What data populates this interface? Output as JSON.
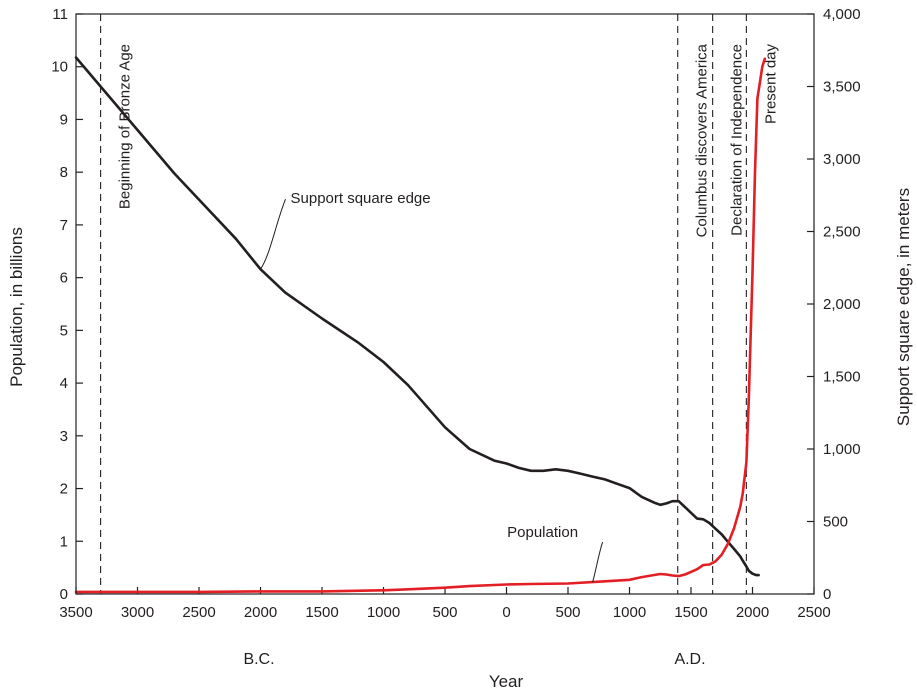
{
  "chart_data": {
    "type": "line",
    "xlabel": "Year",
    "x_era_labels": [
      "B.C.",
      "A.D."
    ],
    "x_ticks": [
      -3500,
      -3000,
      -2500,
      -2000,
      -1500,
      -1000,
      -500,
      0,
      500,
      1000,
      1500,
      2000,
      2500
    ],
    "x_tick_labels": [
      "3500",
      "3000",
      "2500",
      "2000",
      "1500",
      "1000",
      "500",
      "0",
      "500",
      "1000",
      "1500",
      "2000",
      "2500"
    ],
    "xlim": [
      -3500,
      2500
    ],
    "ylabel_left": "Population, in billions",
    "ylim_left": [
      0,
      11
    ],
    "y_ticks_left": [
      "0",
      "1",
      "2",
      "3",
      "4",
      "5",
      "6",
      "7",
      "8",
      "9",
      "10",
      "11"
    ],
    "ylabel_right": "Support square edge, in meters",
    "ylim_right": [
      0,
      4000
    ],
    "y_ticks_right": [
      "0",
      "500",
      "1,000",
      "1,500",
      "2,000",
      "2,500",
      "3,000",
      "3,500",
      "4,000"
    ],
    "grid": false,
    "series": [
      {
        "name": "Support square edge",
        "axis": "right",
        "color": "#231f20",
        "x": [
          -3500,
          -3300,
          -3000,
          -2700,
          -2500,
          -2200,
          -2000,
          -1800,
          -1500,
          -1200,
          -1000,
          -800,
          -500,
          -300,
          -100,
          0,
          100,
          200,
          300,
          400,
          500,
          600,
          700,
          800,
          900,
          1000,
          1050,
          1100,
          1200,
          1250,
          1300,
          1350,
          1400,
          1450,
          1500,
          1550,
          1600,
          1650,
          1700,
          1750,
          1800,
          1850,
          1900,
          1920,
          1950,
          1970,
          2000,
          2030,
          2050
        ],
        "y": [
          3700,
          3500,
          3200,
          2900,
          2720,
          2450,
          2240,
          2080,
          1900,
          1730,
          1600,
          1440,
          1150,
          1000,
          920,
          900,
          870,
          850,
          850,
          860,
          850,
          830,
          810,
          790,
          760,
          730,
          700,
          670,
          630,
          615,
          625,
          640,
          640,
          600,
          560,
          520,
          515,
          490,
          450,
          410,
          360,
          310,
          260,
          230,
          190,
          160,
          140,
          130,
          130
        ]
      },
      {
        "name": "Population",
        "axis": "left",
        "color": "#e31e24",
        "x": [
          -3500,
          -3000,
          -2500,
          -2000,
          -1500,
          -1000,
          -800,
          -500,
          -300,
          -100,
          0,
          200,
          500,
          800,
          1000,
          1100,
          1200,
          1250,
          1300,
          1350,
          1400,
          1450,
          1500,
          1550,
          1600,
          1650,
          1700,
          1750,
          1800,
          1850,
          1900,
          1920,
          1950,
          1970,
          2000,
          2020,
          2040,
          2060,
          2080,
          2100
        ],
        "y": [
          0.04,
          0.04,
          0.04,
          0.05,
          0.05,
          0.07,
          0.09,
          0.12,
          0.15,
          0.17,
          0.18,
          0.19,
          0.2,
          0.24,
          0.27,
          0.32,
          0.36,
          0.38,
          0.37,
          0.35,
          0.34,
          0.37,
          0.42,
          0.47,
          0.55,
          0.56,
          0.62,
          0.75,
          0.95,
          1.25,
          1.65,
          1.9,
          2.5,
          3.7,
          6.1,
          8.0,
          9.4,
          9.7,
          10.0,
          10.15
        ]
      }
    ],
    "event_lines": [
      {
        "year": -3300,
        "label": "Beginning of Bronze Age"
      },
      {
        "year": 1392,
        "label": "Columbus discovers America"
      },
      {
        "year": 1676,
        "label": "Declaration of Independence"
      },
      {
        "year": 1950,
        "label": "Present day"
      }
    ],
    "annotations": [
      {
        "text": "Support square edge",
        "points_to_series": "Support square edge",
        "at_x": -2000
      },
      {
        "text": "Population",
        "points_to_series": "Population",
        "at_x": 700
      }
    ]
  }
}
